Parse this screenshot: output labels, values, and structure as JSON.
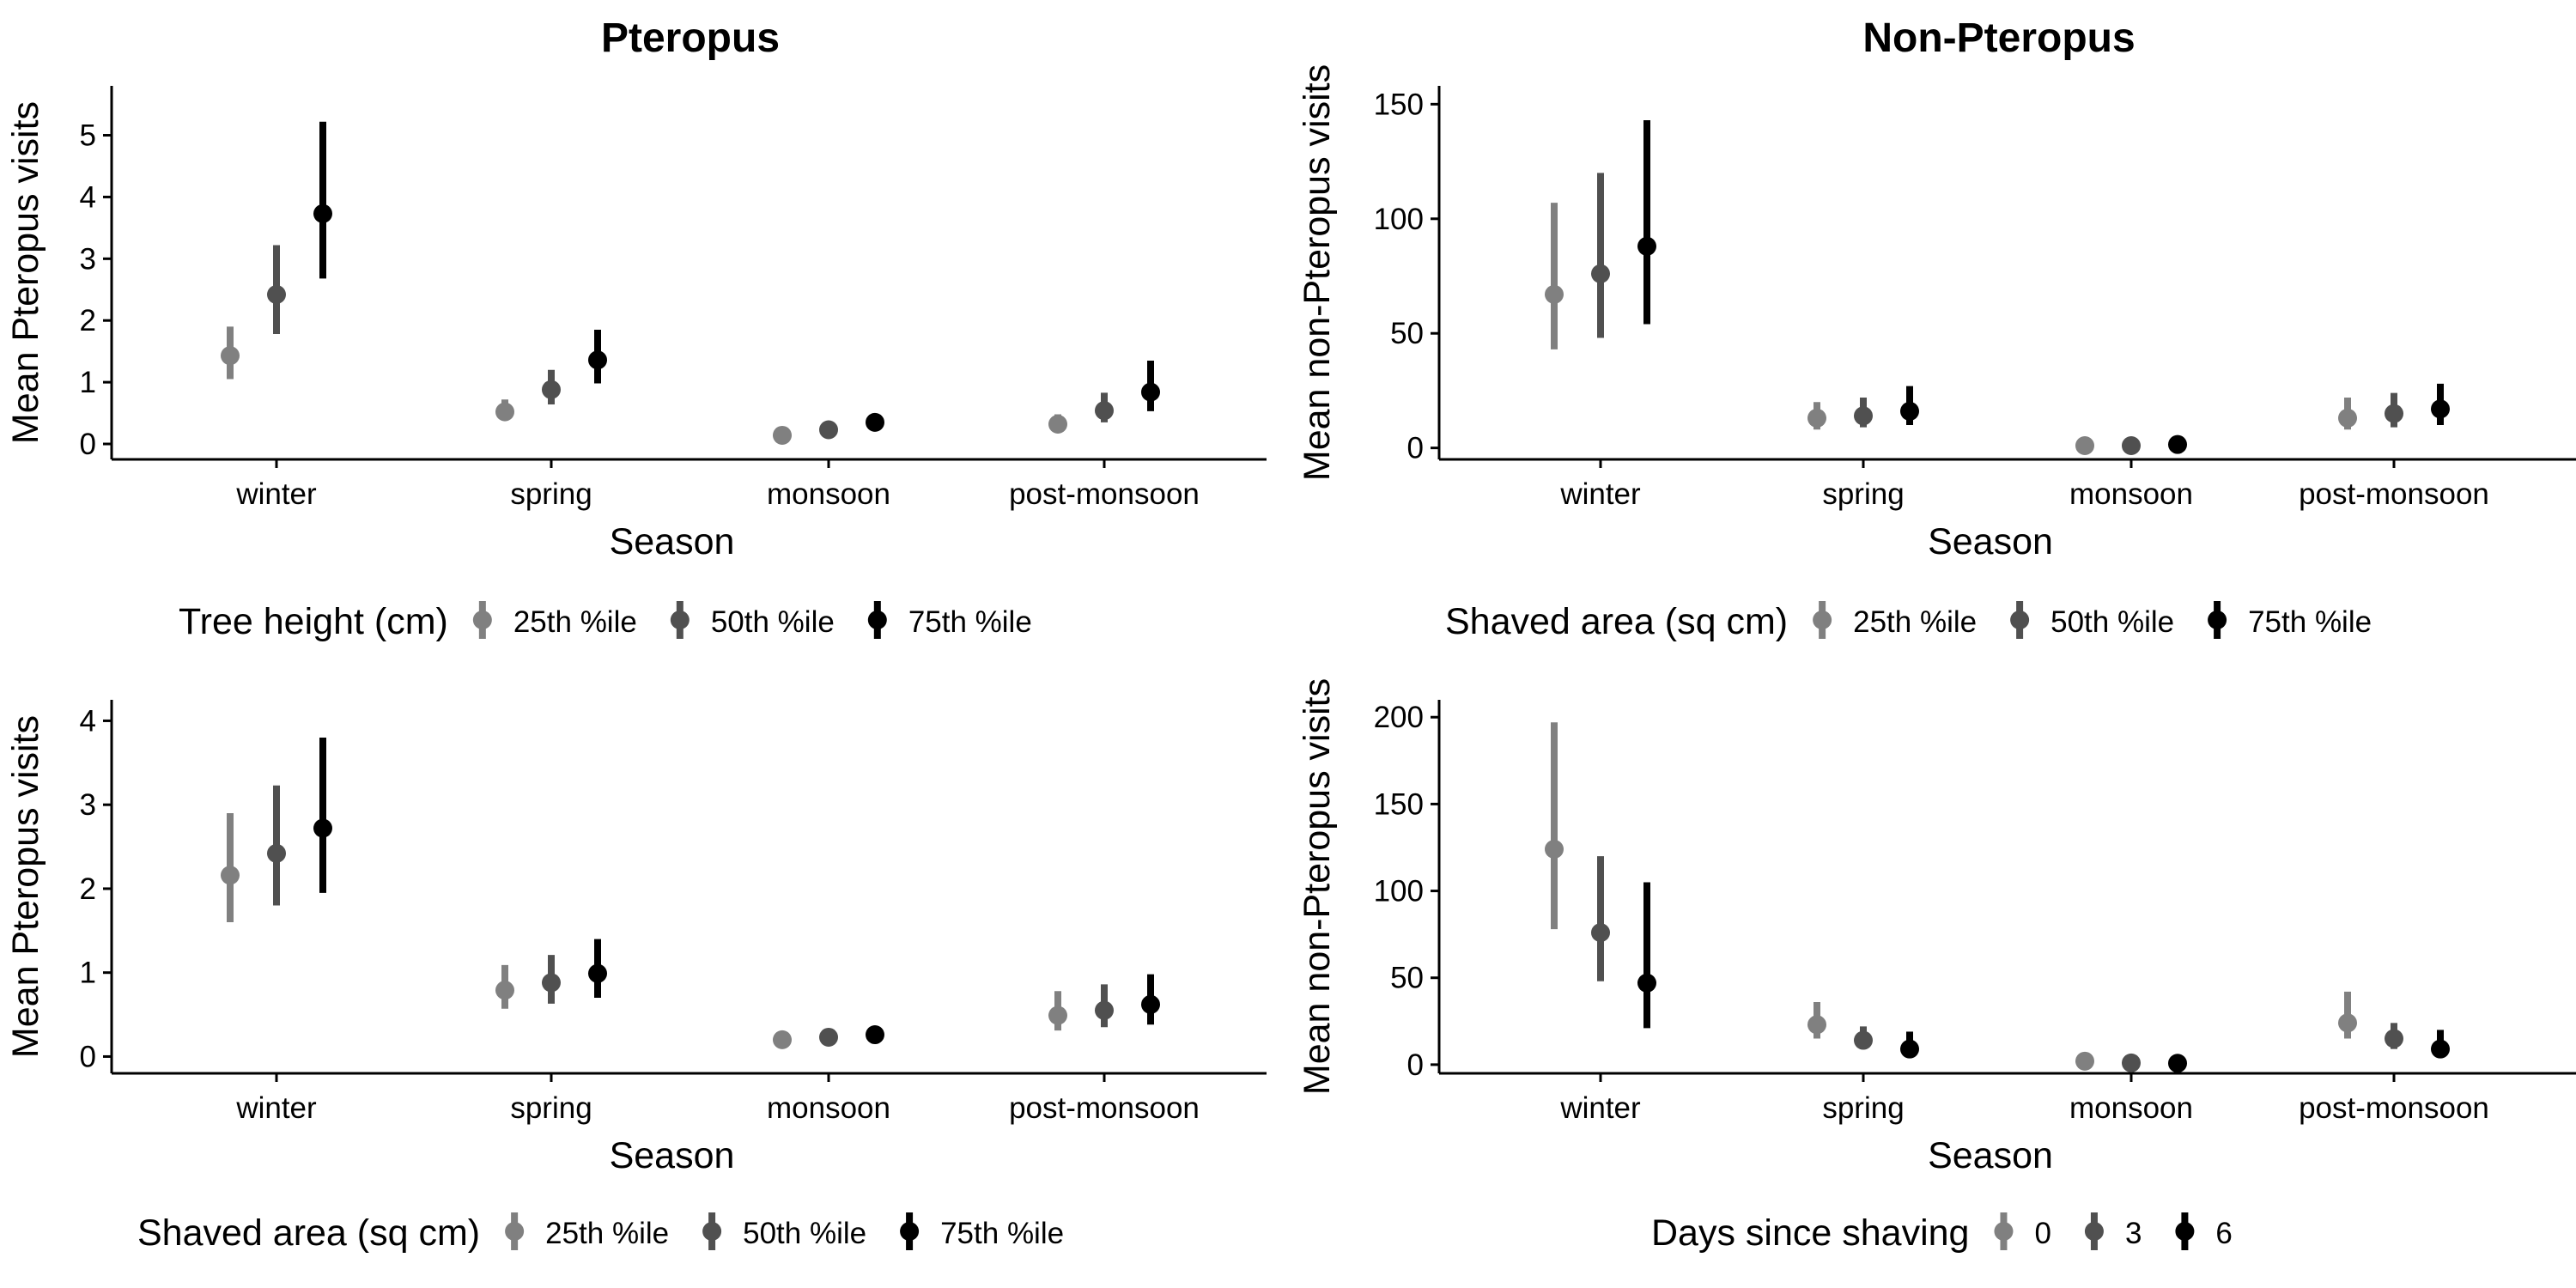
{
  "column_titles": [
    "Pteropus",
    "Non-Pteropus"
  ],
  "series_colors": [
    "#808080",
    "#505050",
    "#000000"
  ],
  "chart_data": [
    {
      "type": "scatter",
      "title": "Pteropus",
      "xlabel": "Season",
      "ylabel": "Mean Pteropus visits",
      "categories": [
        "winter",
        "spring",
        "monsoon",
        "post-monsoon"
      ],
      "ylim": [
        -0.25,
        5.8
      ],
      "yticks": [
        0,
        1,
        2,
        3,
        4,
        5
      ],
      "grid": false,
      "legend": {
        "position": "bottom",
        "title": "Tree height (cm)",
        "entries": [
          "25th %ile",
          "50th %ile",
          "75th %ile"
        ]
      },
      "series": [
        {
          "name": "25th %ile",
          "color": "#808080",
          "values": [
            1.43,
            0.52,
            0.14,
            0.32
          ],
          "lower": [
            1.05,
            0.38,
            0.1,
            0.2
          ],
          "upper": [
            1.9,
            0.72,
            0.19,
            0.48
          ]
        },
        {
          "name": "50th %ile",
          "color": "#505050",
          "values": [
            2.42,
            0.88,
            0.23,
            0.54
          ],
          "lower": [
            1.78,
            0.64,
            0.17,
            0.35
          ],
          "upper": [
            3.22,
            1.2,
            0.31,
            0.83
          ]
        },
        {
          "name": "75th %ile",
          "color": "#000000",
          "values": [
            3.73,
            1.36,
            0.35,
            0.84
          ],
          "lower": [
            2.68,
            0.98,
            0.25,
            0.53
          ],
          "upper": [
            5.22,
            1.85,
            0.48,
            1.35
          ]
        }
      ]
    },
    {
      "type": "scatter",
      "title": "Non-Pteropus",
      "xlabel": "Season",
      "ylabel": "Mean non-Pteropus visits",
      "categories": [
        "winter",
        "spring",
        "monsoon",
        "post-monsoon"
      ],
      "ylim": [
        -5,
        158
      ],
      "yticks": [
        0,
        50,
        100,
        150
      ],
      "grid": false,
      "legend": {
        "position": "bottom",
        "title": "Shaved area (sq cm)",
        "entries": [
          "25th %ile",
          "50th %ile",
          "75th %ile"
        ]
      },
      "series": [
        {
          "name": "25th %ile",
          "color": "#808080",
          "values": [
            67,
            13,
            1,
            13
          ],
          "lower": [
            43,
            8,
            0.5,
            8
          ],
          "upper": [
            107,
            20,
            2,
            22
          ]
        },
        {
          "name": "50th %ile",
          "color": "#505050",
          "values": [
            76,
            14,
            1,
            15
          ],
          "lower": [
            48,
            9,
            0.5,
            9
          ],
          "upper": [
            120,
            22,
            2,
            24
          ]
        },
        {
          "name": "75th %ile",
          "color": "#000000",
          "values": [
            88,
            16,
            1.5,
            17
          ],
          "lower": [
            54,
            10,
            0.8,
            10
          ],
          "upper": [
            143,
            27,
            3,
            28
          ]
        }
      ]
    },
    {
      "type": "scatter",
      "title": "",
      "xlabel": "Season",
      "ylabel": "Mean Pteropus visits",
      "categories": [
        "winter",
        "spring",
        "monsoon",
        "post-monsoon"
      ],
      "ylim": [
        -0.2,
        4.25
      ],
      "yticks": [
        0,
        1,
        2,
        3,
        4
      ],
      "grid": false,
      "legend": {
        "position": "bottom",
        "title": "Shaved area (sq cm)",
        "entries": [
          "25th %ile",
          "50th %ile",
          "75th %ile"
        ]
      },
      "series": [
        {
          "name": "25th %ile",
          "color": "#808080",
          "values": [
            2.16,
            0.79,
            0.2,
            0.49
          ],
          "lower": [
            1.6,
            0.57,
            0.14,
            0.31
          ],
          "upper": [
            2.9,
            1.09,
            0.28,
            0.78
          ]
        },
        {
          "name": "50th %ile",
          "color": "#505050",
          "values": [
            2.42,
            0.88,
            0.23,
            0.55
          ],
          "lower": [
            1.8,
            0.63,
            0.17,
            0.35
          ],
          "upper": [
            3.23,
            1.21,
            0.31,
            0.86
          ]
        },
        {
          "name": "75th %ile",
          "color": "#000000",
          "values": [
            2.72,
            0.99,
            0.26,
            0.62
          ],
          "lower": [
            1.95,
            0.7,
            0.19,
            0.38
          ],
          "upper": [
            3.8,
            1.4,
            0.36,
            0.98
          ]
        }
      ]
    },
    {
      "type": "scatter",
      "title": "",
      "xlabel": "Season",
      "ylabel": "Mean non-Pteropus visits",
      "categories": [
        "winter",
        "spring",
        "monsoon",
        "post-monsoon"
      ],
      "ylim": [
        -5,
        210
      ],
      "yticks": [
        0,
        50,
        100,
        150,
        200
      ],
      "grid": false,
      "legend": {
        "position": "bottom",
        "title": "Days since shaving",
        "entries": [
          "0",
          "3",
          "6"
        ]
      },
      "series": [
        {
          "name": "0",
          "color": "#808080",
          "values": [
            124,
            23,
            2,
            24
          ],
          "lower": [
            78,
            15,
            1,
            15
          ],
          "upper": [
            197,
            36,
            4,
            42
          ]
        },
        {
          "name": "3",
          "color": "#505050",
          "values": [
            76,
            14,
            1,
            15
          ],
          "lower": [
            48,
            9,
            0.5,
            9
          ],
          "upper": [
            120,
            22,
            2,
            24
          ]
        },
        {
          "name": "6",
          "color": "#000000",
          "values": [
            47,
            9,
            0.8,
            9
          ],
          "lower": [
            21,
            4,
            0.3,
            5
          ],
          "upper": [
            105,
            19,
            2,
            20
          ]
        }
      ]
    }
  ]
}
